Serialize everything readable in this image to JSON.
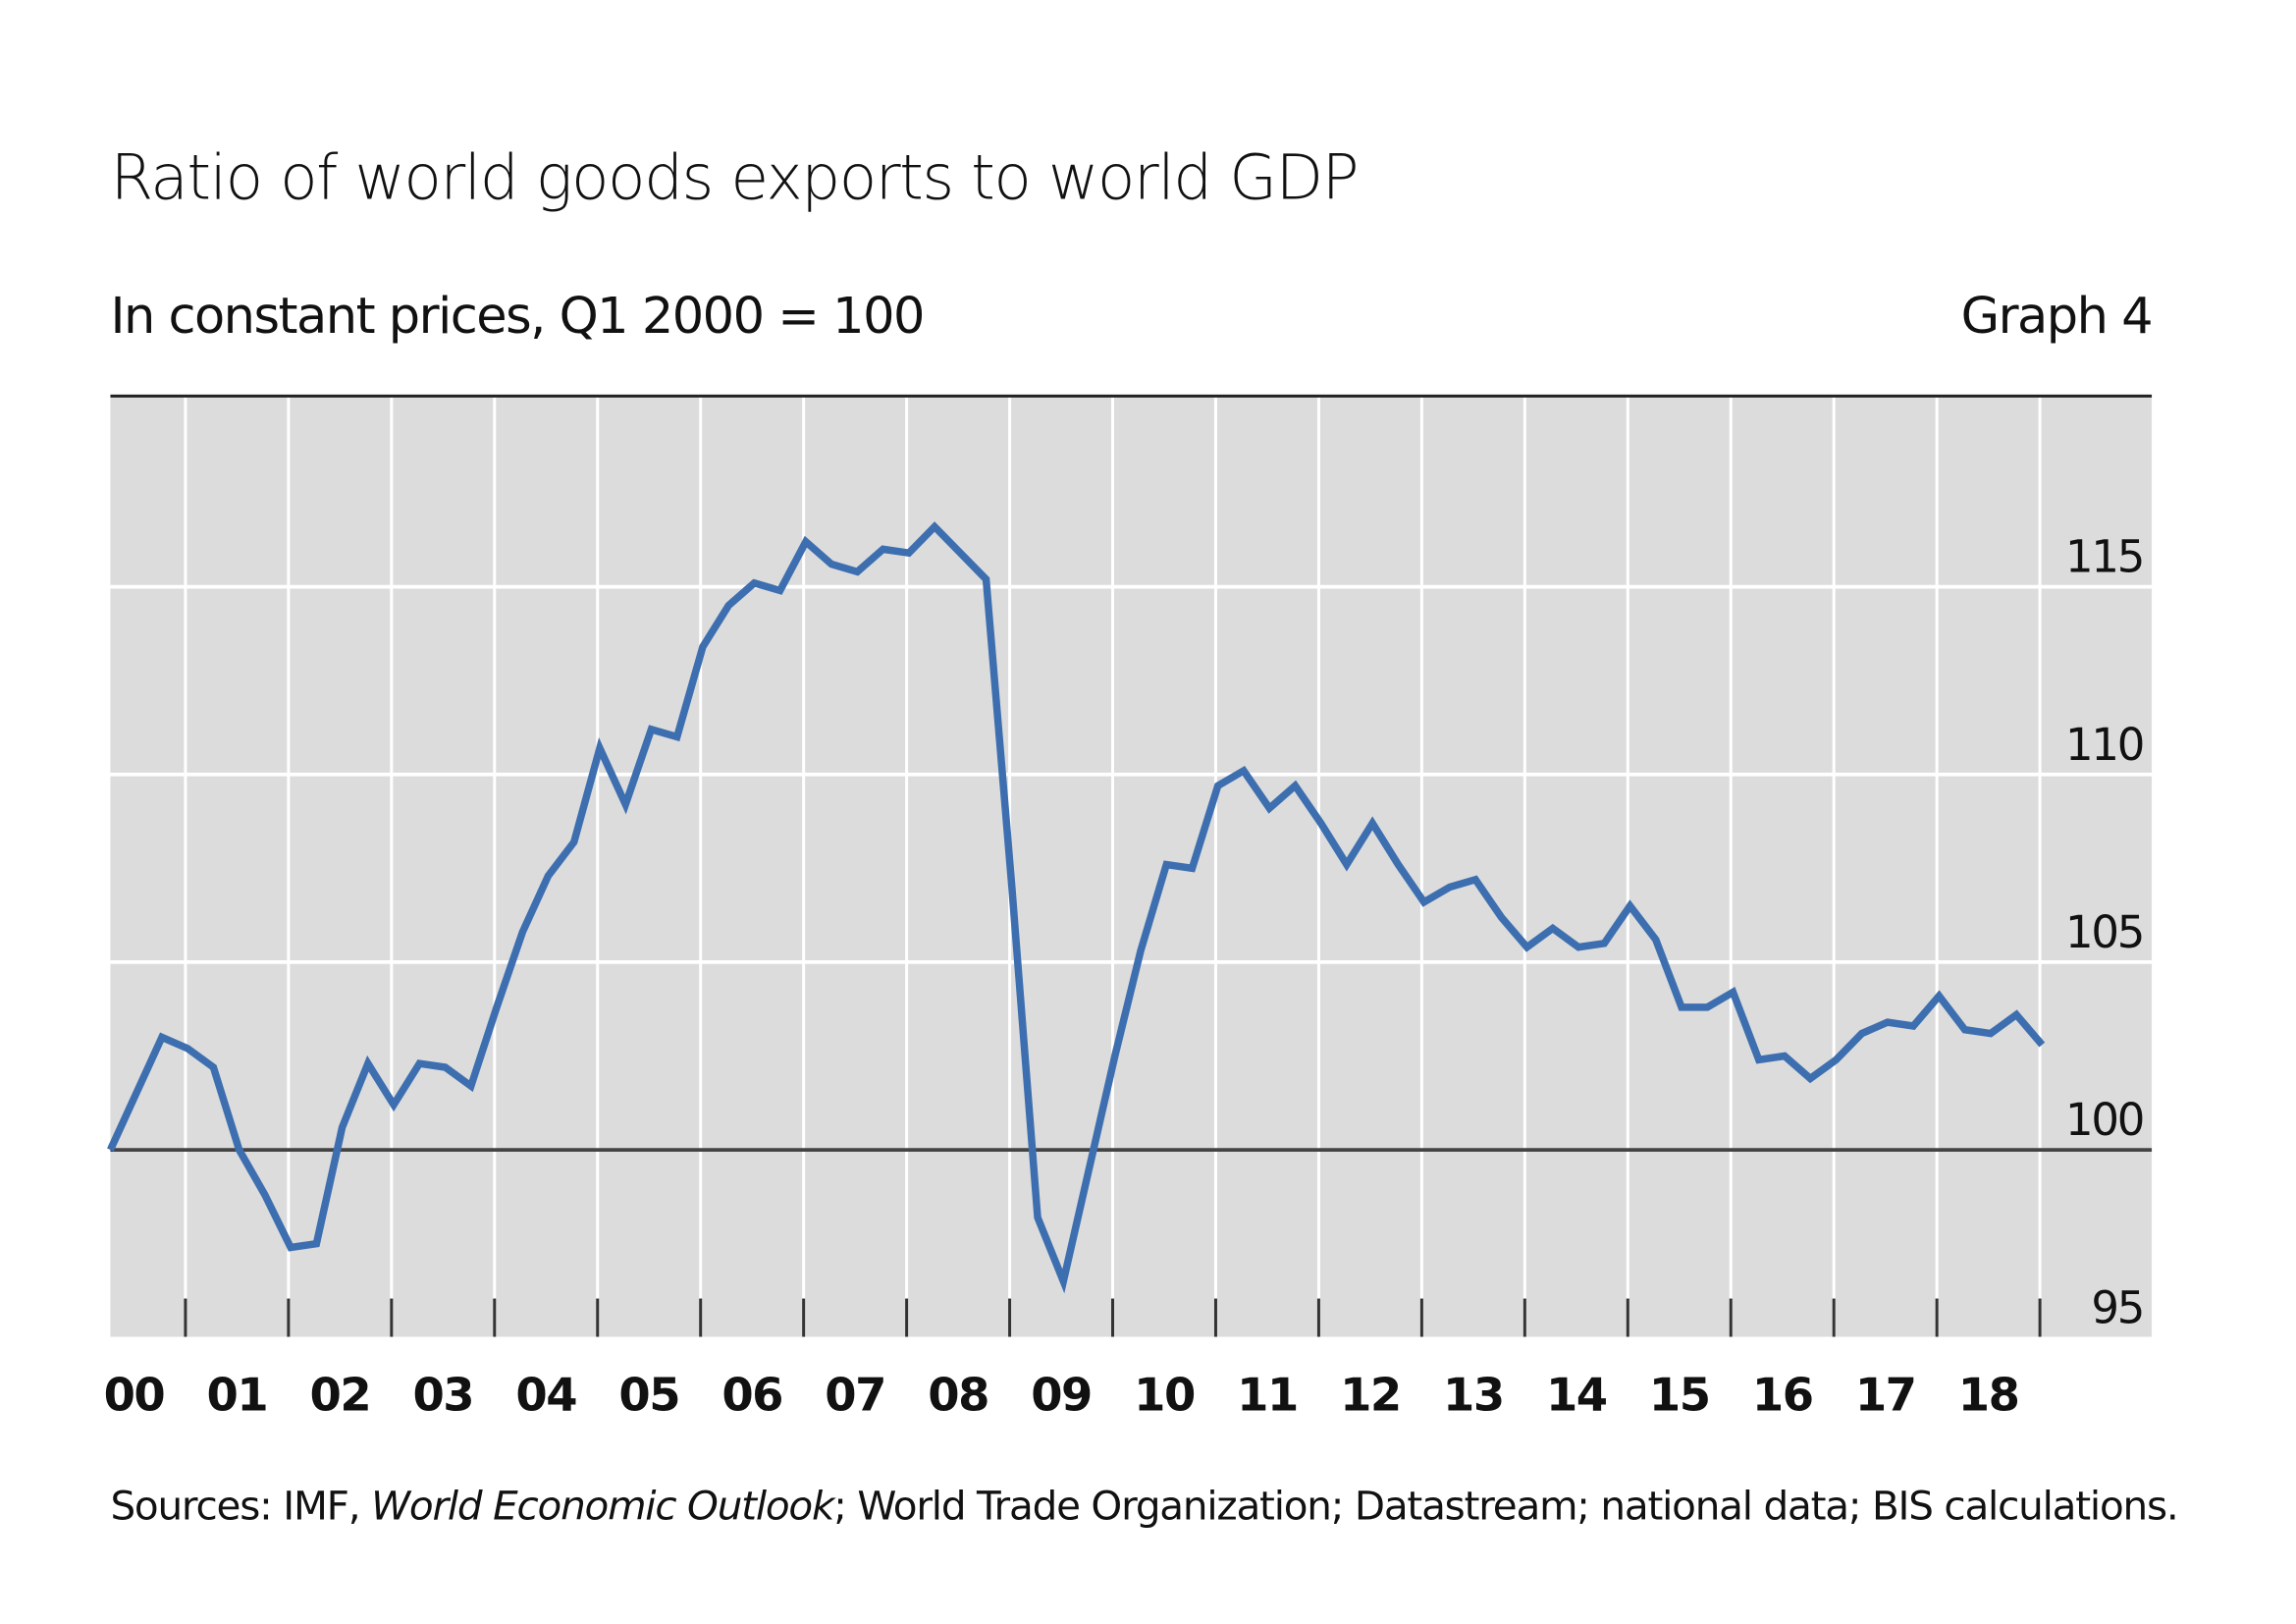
{
  "title": "Ratio of world goods exports to world GDP",
  "subtitle": "In constant prices, Q1 2000 = 100",
  "graph_label": "Graph 4",
  "sources": {
    "prefix": "Sources: IMF, ",
    "italic": "World Economic Outlook",
    "suffix": "; World Trade Organization; Datastream; national data; BIS calculations."
  },
  "colors": {
    "line": "#3d6fb0",
    "plot_background": "#dcdcdc",
    "grid": "#ffffff",
    "baseline": "#444444"
  },
  "chart_data": {
    "type": "line",
    "title": "Ratio of world goods exports to world GDP",
    "subtitle": "In constant prices, Q1 2000 = 100",
    "frequency": "quarterly",
    "x": [
      "2000Q1",
      "2000Q2",
      "2000Q3",
      "2000Q4",
      "2001Q1",
      "2001Q2",
      "2001Q3",
      "2001Q4",
      "2002Q1",
      "2002Q2",
      "2002Q3",
      "2002Q4",
      "2003Q1",
      "2003Q2",
      "2003Q3",
      "2003Q4",
      "2004Q1",
      "2004Q2",
      "2004Q3",
      "2004Q4",
      "2005Q1",
      "2005Q2",
      "2005Q3",
      "2005Q4",
      "2006Q1",
      "2006Q2",
      "2006Q3",
      "2006Q4",
      "2007Q1",
      "2007Q2",
      "2007Q3",
      "2007Q4",
      "2008Q1",
      "2008Q2",
      "2008Q3",
      "2008Q4",
      "2009Q1",
      "2009Q2",
      "2009Q3",
      "2009Q4",
      "2010Q1",
      "2010Q2",
      "2010Q3",
      "2010Q4",
      "2011Q1",
      "2011Q2",
      "2011Q3",
      "2011Q4",
      "2012Q1",
      "2012Q2",
      "2012Q3",
      "2012Q4",
      "2013Q1",
      "2013Q2",
      "2013Q3",
      "2013Q4",
      "2014Q1",
      "2014Q2",
      "2014Q3",
      "2014Q4",
      "2015Q1",
      "2015Q2",
      "2015Q3",
      "2015Q4",
      "2016Q1",
      "2016Q2",
      "2016Q3",
      "2016Q4",
      "2017Q1",
      "2017Q2",
      "2017Q3",
      "2017Q4",
      "2018Q1",
      "2018Q2",
      "2018Q3",
      "2018Q4"
    ],
    "series": [
      {
        "values": [
          100,
          101.5,
          103,
          102.7,
          102.2,
          100,
          98.8,
          97.4,
          97.5,
          100.6,
          102.3,
          101.2,
          102.3,
          102.2,
          101.7,
          103.8,
          105.8,
          107.3,
          108.2,
          110.7,
          109.2,
          111.2,
          111,
          113.4,
          114.5,
          115.1,
          114.9,
          116.2,
          115.6,
          115.4,
          116,
          115.9,
          116.6,
          115.9,
          115.2,
          107,
          98.2,
          96.5,
          99.5,
          102.5,
          105.3,
          107.6,
          107.5,
          109.7,
          110.1,
          109.1,
          109.7,
          108.7,
          107.6,
          108.7,
          107.6,
          106.6,
          107,
          107.2,
          106.2,
          105.4,
          105.9,
          105.4,
          105.5,
          106.5,
          105.6,
          103.8,
          103.8,
          104.2,
          102.4,
          102.5,
          101.9,
          102.4,
          103.1,
          103.4,
          103.3,
          104.1,
          103.2,
          103.1,
          103.6,
          102.8
        ]
      }
    ],
    "x_tick_labels": [
      "00",
      "01",
      "02",
      "03",
      "04",
      "05",
      "06",
      "07",
      "08",
      "09",
      "10",
      "11",
      "12",
      "13",
      "14",
      "15",
      "16",
      "17",
      "18"
    ],
    "y_tick_labels": [
      "95",
      "100",
      "105",
      "110",
      "115"
    ],
    "y_ticks": [
      95,
      100,
      105,
      110,
      115
    ],
    "ylim": [
      95,
      120
    ],
    "y_axis_side": "right",
    "reference_line": 100,
    "grid": true,
    "legend": "none"
  }
}
